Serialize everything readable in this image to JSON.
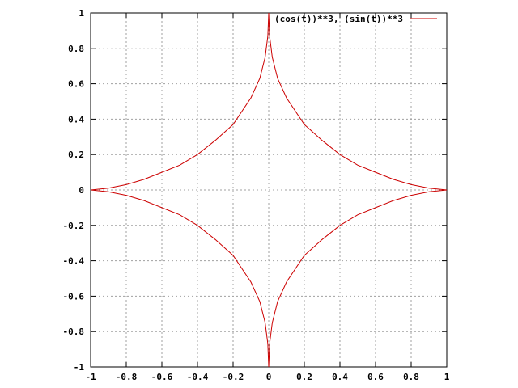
{
  "chart_data": {
    "type": "line",
    "title": "",
    "xlabel": "",
    "ylabel": "",
    "xlim": [
      -1,
      1
    ],
    "ylim": [
      -1,
      1
    ],
    "grid": true,
    "legend_position": "top-right",
    "x_ticks": [
      -1,
      -0.8,
      -0.6,
      -0.4,
      -0.2,
      0,
      0.2,
      0.4,
      0.6,
      0.8,
      1
    ],
    "y_ticks": [
      -1,
      -0.8,
      -0.6,
      -0.4,
      -0.2,
      0,
      0.2,
      0.4,
      0.6,
      0.8,
      1
    ],
    "x_tick_labels": [
      "-1",
      "-0.8",
      "-0.6",
      "-0.4",
      "-0.2",
      "0",
      "0.2",
      "0.4",
      "0.6",
      "0.8",
      "1"
    ],
    "y_tick_labels": [
      "-1",
      "-0.8",
      "-0.6",
      "-0.4",
      "-0.2",
      "0",
      "0.2",
      "0.4",
      "0.6",
      "0.8",
      "1"
    ],
    "series": [
      {
        "name": "(cos(t))**3, (sin(t))**3",
        "color": "#cc0000",
        "points": [
          [
            1,
            0
          ],
          [
            0.9,
            0.01
          ],
          [
            0.8,
            0.03
          ],
          [
            0.7,
            0.06
          ],
          [
            0.6,
            0.1
          ],
          [
            0.5,
            0.14
          ],
          [
            0.4,
            0.2
          ],
          [
            0.3,
            0.28
          ],
          [
            0.2,
            0.37
          ],
          [
            0.1,
            0.52
          ],
          [
            0.05,
            0.63
          ],
          [
            0.02,
            0.75
          ],
          [
            0.005,
            0.87
          ],
          [
            0,
            1
          ],
          [
            -0.005,
            0.87
          ],
          [
            -0.02,
            0.75
          ],
          [
            -0.05,
            0.63
          ],
          [
            -0.1,
            0.52
          ],
          [
            -0.2,
            0.37
          ],
          [
            -0.3,
            0.28
          ],
          [
            -0.4,
            0.2
          ],
          [
            -0.5,
            0.14
          ],
          [
            -0.6,
            0.1
          ],
          [
            -0.7,
            0.06
          ],
          [
            -0.8,
            0.03
          ],
          [
            -0.9,
            0.01
          ],
          [
            -1,
            0
          ],
          [
            -0.9,
            -0.01
          ],
          [
            -0.8,
            -0.03
          ],
          [
            -0.7,
            -0.06
          ],
          [
            -0.6,
            -0.1
          ],
          [
            -0.5,
            -0.14
          ],
          [
            -0.4,
            -0.2
          ],
          [
            -0.3,
            -0.28
          ],
          [
            -0.2,
            -0.37
          ],
          [
            -0.1,
            -0.52
          ],
          [
            -0.05,
            -0.63
          ],
          [
            -0.02,
            -0.75
          ],
          [
            -0.005,
            -0.87
          ],
          [
            0,
            -1
          ],
          [
            0.005,
            -0.87
          ],
          [
            0.02,
            -0.75
          ],
          [
            0.05,
            -0.63
          ],
          [
            0.1,
            -0.52
          ],
          [
            0.2,
            -0.37
          ],
          [
            0.3,
            -0.28
          ],
          [
            0.4,
            -0.2
          ],
          [
            0.5,
            -0.14
          ],
          [
            0.6,
            -0.1
          ],
          [
            0.7,
            -0.06
          ],
          [
            0.8,
            -0.03
          ],
          [
            0.9,
            -0.01
          ],
          [
            1,
            0
          ]
        ]
      }
    ]
  }
}
